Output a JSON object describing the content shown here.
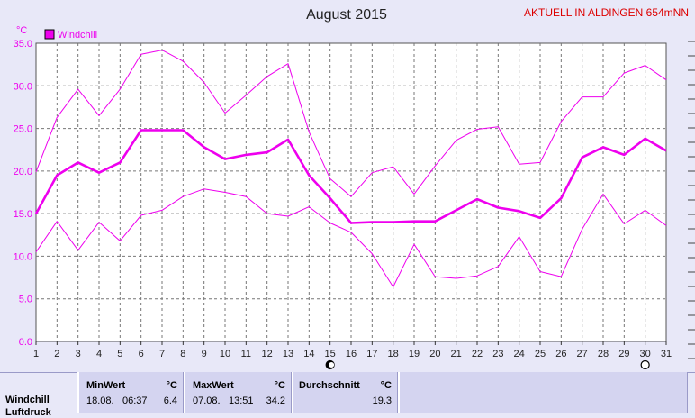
{
  "header": {
    "title": "August 2015",
    "station": "AKTUELL IN ALDINGEN 654mNN"
  },
  "chart_data": {
    "type": "line",
    "title": "August 2015",
    "ylabel": "°C",
    "ylim": [
      0,
      35
    ],
    "yticks": [
      "0.0",
      "5.0",
      "10.0",
      "15.0",
      "20.0",
      "25.0",
      "30.0",
      "35.0"
    ],
    "x": [
      1,
      2,
      3,
      4,
      5,
      6,
      7,
      8,
      9,
      10,
      11,
      12,
      13,
      14,
      15,
      16,
      17,
      18,
      19,
      20,
      21,
      22,
      23,
      24,
      25,
      26,
      27,
      28,
      29,
      30,
      31
    ],
    "grid": true,
    "legend": "top-left",
    "series": [
      {
        "name": "Windchill",
        "role": "mean",
        "color": "#ee00ee",
        "values": [
          15.0,
          19.5,
          21.0,
          19.8,
          21.0,
          24.8,
          24.8,
          24.8,
          22.8,
          21.4,
          21.9,
          22.2,
          23.7,
          19.5,
          16.8,
          13.9,
          14.0,
          14.0,
          14.1,
          14.1,
          15.4,
          16.7,
          15.7,
          15.3,
          14.5,
          16.8,
          21.6,
          22.8,
          21.9,
          23.8,
          22.4
        ]
      },
      {
        "name": "",
        "role": "max",
        "color": "#ee00ee",
        "values": [
          19.9,
          26.3,
          29.6,
          26.5,
          29.6,
          33.7,
          34.2,
          32.9,
          30.4,
          26.8,
          28.9,
          31.1,
          32.6,
          24.6,
          19.1,
          17.0,
          19.8,
          20.5,
          17.3,
          20.6,
          23.6,
          24.9,
          25.2,
          20.8,
          21.0,
          25.8,
          28.7,
          28.7,
          31.5,
          32.4,
          30.7
        ]
      },
      {
        "name": "",
        "role": "min",
        "color": "#ee00ee",
        "values": [
          10.5,
          14.1,
          10.7,
          14.0,
          11.8,
          14.8,
          15.4,
          17.0,
          17.9,
          17.5,
          17.0,
          15.0,
          14.7,
          15.8,
          13.9,
          12.8,
          10.3,
          6.4,
          11.4,
          7.6,
          7.4,
          7.7,
          8.8,
          12.3,
          8.2,
          7.6,
          13.2,
          17.3,
          13.8,
          15.4,
          13.6
        ]
      }
    ],
    "moon_markers": [
      {
        "day": 15,
        "phase": "full-moon"
      },
      {
        "day": 30,
        "phase": "new-moon"
      }
    ]
  },
  "stats": {
    "row_label": "Windchill",
    "row_label_2": "Luftdruck",
    "min": {
      "header": "MinWert",
      "unit": "°C",
      "date": "18.08.",
      "time": "06:37",
      "value": "6.4"
    },
    "max": {
      "header": "MaxWert",
      "unit": "°C",
      "date": "07.08.",
      "time": "13:51",
      "value": "34.2"
    },
    "avg": {
      "header": "Durchschnitt",
      "unit": "°C",
      "value": "19.3"
    }
  },
  "colors": {
    "background": "#e8e8f8",
    "plot_background": "#ffffff",
    "series": "#ee00ee",
    "station_text": "#dd0000",
    "axis_text": "#ee00ee"
  }
}
